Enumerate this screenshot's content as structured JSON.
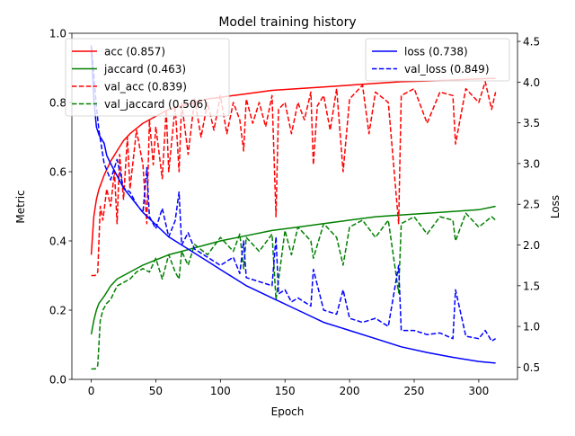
{
  "chart_data": {
    "type": "line",
    "title": "Model training history",
    "xlabel": "Epoch",
    "ylabel": "Metric",
    "ylabel_right": "Loss",
    "xlim": [
      -15,
      330
    ],
    "ylim": [
      0.0,
      1.0
    ],
    "ylim_right": [
      0.35,
      4.6
    ],
    "xticks": [
      0,
      50,
      100,
      150,
      200,
      250,
      300
    ],
    "yticks": [
      0.0,
      0.2,
      0.4,
      0.6,
      0.8,
      1.0
    ],
    "yticks_right": [
      0.5,
      1.0,
      1.5,
      2.0,
      2.5,
      3.0,
      3.5,
      4.0,
      4.5
    ],
    "grid": false,
    "legend_left": {
      "placement": "upper-left",
      "entries": [
        "acc (0.857)",
        "jaccard (0.463)",
        "val_acc (0.839)",
        "val_jaccard (0.506)"
      ]
    },
    "legend_right": {
      "placement": "upper-right",
      "entries": [
        "loss (0.738)",
        "val_loss (0.849)"
      ]
    },
    "series": [
      {
        "name": "acc (0.857)",
        "axis": "left",
        "color": "#ff0000",
        "style": "solid",
        "x": [
          0,
          2,
          4,
          6,
          8,
          10,
          15,
          20,
          25,
          30,
          40,
          50,
          60,
          70,
          80,
          90,
          100,
          120,
          140,
          160,
          180,
          200,
          220,
          240,
          260,
          280,
          300,
          313
        ],
        "y": [
          0.36,
          0.47,
          0.52,
          0.55,
          0.57,
          0.59,
          0.63,
          0.66,
          0.69,
          0.71,
          0.74,
          0.76,
          0.78,
          0.79,
          0.8,
          0.81,
          0.815,
          0.825,
          0.835,
          0.84,
          0.845,
          0.85,
          0.855,
          0.86,
          0.862,
          0.865,
          0.868,
          0.87
        ]
      },
      {
        "name": "jaccard (0.463)",
        "axis": "left",
        "color": "#008000",
        "style": "solid",
        "x": [
          0,
          2,
          4,
          6,
          8,
          10,
          15,
          20,
          25,
          30,
          40,
          50,
          60,
          70,
          80,
          90,
          100,
          120,
          140,
          160,
          180,
          200,
          220,
          240,
          260,
          280,
          300,
          313
        ],
        "y": [
          0.13,
          0.17,
          0.2,
          0.22,
          0.23,
          0.24,
          0.27,
          0.29,
          0.3,
          0.31,
          0.33,
          0.345,
          0.36,
          0.37,
          0.38,
          0.39,
          0.4,
          0.415,
          0.43,
          0.44,
          0.45,
          0.46,
          0.47,
          0.475,
          0.48,
          0.485,
          0.49,
          0.5
        ]
      },
      {
        "name": "val_acc (0.839)",
        "axis": "left",
        "color": "#ff0000",
        "style": "dashed",
        "x": [
          0,
          3,
          5,
          7,
          9,
          12,
          15,
          18,
          20,
          22,
          25,
          28,
          30,
          35,
          40,
          43,
          45,
          48,
          50,
          55,
          58,
          60,
          65,
          68,
          70,
          75,
          80,
          85,
          90,
          95,
          100,
          105,
          110,
          115,
          118,
          120,
          125,
          130,
          135,
          140,
          143,
          145,
          150,
          155,
          160,
          165,
          170,
          172,
          175,
          180,
          185,
          190,
          195,
          200,
          210,
          215,
          220,
          230,
          238,
          240,
          250,
          260,
          270,
          280,
          282,
          290,
          300,
          305,
          310,
          313
        ],
        "y": [
          0.3,
          0.3,
          0.31,
          0.5,
          0.46,
          0.55,
          0.5,
          0.6,
          0.45,
          0.65,
          0.52,
          0.7,
          0.55,
          0.72,
          0.62,
          0.45,
          0.75,
          0.62,
          0.73,
          0.58,
          0.78,
          0.6,
          0.79,
          0.6,
          0.8,
          0.65,
          0.81,
          0.7,
          0.8,
          0.72,
          0.82,
          0.71,
          0.8,
          0.75,
          0.66,
          0.81,
          0.74,
          0.8,
          0.73,
          0.82,
          0.47,
          0.78,
          0.8,
          0.71,
          0.8,
          0.75,
          0.83,
          0.62,
          0.79,
          0.82,
          0.72,
          0.84,
          0.6,
          0.81,
          0.85,
          0.71,
          0.83,
          0.8,
          0.45,
          0.82,
          0.84,
          0.74,
          0.83,
          0.82,
          0.68,
          0.84,
          0.8,
          0.86,
          0.78,
          0.83
        ]
      },
      {
        "name": "val_jaccard (0.506)",
        "axis": "left",
        "color": "#008000",
        "style": "dashed",
        "x": [
          0,
          3,
          5,
          7,
          9,
          12,
          15,
          20,
          25,
          30,
          35,
          40,
          45,
          50,
          55,
          60,
          65,
          68,
          70,
          75,
          80,
          90,
          100,
          110,
          115,
          118,
          120,
          130,
          140,
          143,
          150,
          155,
          160,
          170,
          172,
          180,
          190,
          195,
          200,
          210,
          220,
          230,
          238,
          240,
          250,
          260,
          270,
          280,
          282,
          290,
          300,
          310,
          313
        ],
        "y": [
          0.03,
          0.03,
          0.04,
          0.17,
          0.2,
          0.22,
          0.23,
          0.27,
          0.28,
          0.29,
          0.31,
          0.32,
          0.31,
          0.35,
          0.29,
          0.36,
          0.31,
          0.29,
          0.37,
          0.33,
          0.39,
          0.36,
          0.41,
          0.37,
          0.42,
          0.32,
          0.41,
          0.37,
          0.42,
          0.23,
          0.43,
          0.36,
          0.44,
          0.4,
          0.35,
          0.45,
          0.41,
          0.33,
          0.44,
          0.46,
          0.41,
          0.46,
          0.25,
          0.45,
          0.47,
          0.42,
          0.47,
          0.46,
          0.4,
          0.48,
          0.44,
          0.47,
          0.46
        ]
      },
      {
        "name": "loss (0.738)",
        "axis": "right",
        "color": "#0000ff",
        "style": "solid",
        "x": [
          0,
          2,
          4,
          6,
          8,
          10,
          12,
          15,
          20,
          25,
          30,
          40,
          50,
          60,
          70,
          80,
          90,
          100,
          110,
          120,
          140,
          160,
          180,
          200,
          220,
          240,
          260,
          280,
          300,
          313
        ],
        "y": [
          4.45,
          3.8,
          3.45,
          3.35,
          3.3,
          3.25,
          3.1,
          3.0,
          2.85,
          2.7,
          2.6,
          2.4,
          2.25,
          2.1,
          2.0,
          1.9,
          1.8,
          1.7,
          1.6,
          1.5,
          1.35,
          1.2,
          1.05,
          0.95,
          0.85,
          0.75,
          0.68,
          0.62,
          0.57,
          0.55
        ]
      },
      {
        "name": "val_loss (0.849)",
        "axis": "right",
        "color": "#0000ff",
        "style": "dashed",
        "x": [
          0,
          2,
          4,
          6,
          8,
          10,
          15,
          20,
          25,
          30,
          35,
          40,
          43,
          45,
          50,
          55,
          60,
          65,
          68,
          70,
          75,
          80,
          90,
          100,
          110,
          115,
          118,
          120,
          130,
          140,
          143,
          145,
          150,
          155,
          160,
          170,
          172,
          180,
          190,
          195,
          200,
          210,
          220,
          230,
          238,
          240,
          250,
          260,
          270,
          280,
          282,
          290,
          300,
          305,
          310,
          313
        ],
        "y": [
          4.45,
          4.1,
          3.7,
          3.4,
          3.2,
          3.0,
          2.8,
          3.05,
          2.7,
          2.65,
          2.5,
          2.4,
          2.95,
          2.35,
          2.2,
          2.45,
          2.1,
          2.3,
          2.65,
          2.0,
          2.15,
          1.95,
          1.85,
          1.75,
          1.85,
          1.65,
          2.05,
          1.6,
          1.55,
          1.5,
          2.1,
          1.4,
          1.45,
          1.3,
          1.35,
          1.25,
          1.7,
          1.2,
          1.15,
          1.45,
          1.1,
          1.05,
          1.1,
          1.0,
          1.75,
          0.95,
          0.95,
          0.9,
          0.92,
          0.85,
          1.45,
          0.88,
          0.85,
          0.95,
          0.82,
          0.85
        ]
      }
    ]
  }
}
